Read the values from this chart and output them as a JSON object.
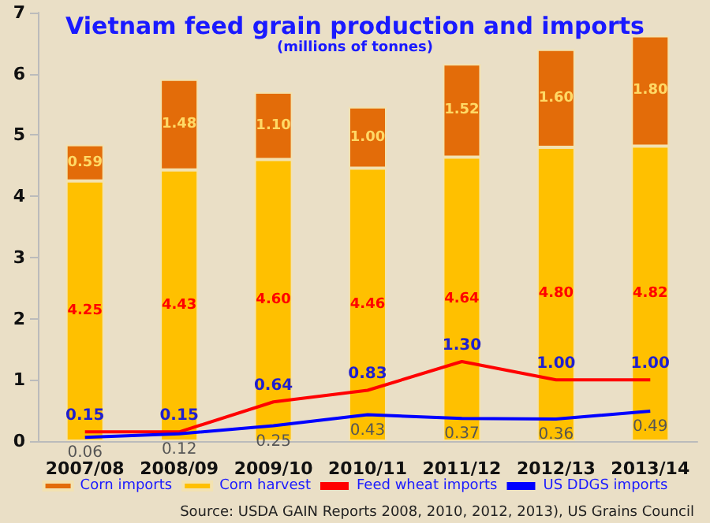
{
  "chart_data": {
    "type": "bar",
    "title": "Vietnam feed grain production and imports",
    "subtitle": "(millions of tonnes)",
    "categories": [
      "2007/08",
      "2008/09",
      "2009/10",
      "2010/11",
      "2011/12",
      "2012/13",
      "2013/14"
    ],
    "stacked": true,
    "series": [
      {
        "name": "Corn harvest",
        "color": "#ffc000",
        "values": [
          4.25,
          4.43,
          4.6,
          4.46,
          4.64,
          4.8,
          4.82
        ],
        "value_labels": [
          "4.25",
          "4.43",
          "4.60",
          "4.46",
          "4.64",
          "4.80",
          "4.82"
        ]
      },
      {
        "name": "Corn imports",
        "color": "#e36c09",
        "values": [
          0.59,
          1.48,
          1.1,
          1.0,
          1.52,
          1.6,
          1.8
        ],
        "value_labels": [
          "0.59",
          "1.48",
          "1.10",
          "1.00",
          "1.52",
          "1.60",
          "1.80"
        ]
      },
      {
        "name": "Feed wheat imports",
        "type": "line",
        "color": "#ff0000",
        "values": [
          0.15,
          0.15,
          0.64,
          0.83,
          1.3,
          1.0,
          1.0
        ],
        "value_labels": [
          "0.15",
          "0.15",
          "0.64",
          "0.83",
          "1.30",
          "1.00",
          "1.00"
        ]
      },
      {
        "name": "US DDGS imports",
        "type": "line",
        "color": "#0000ff",
        "values": [
          0.06,
          0.12,
          0.25,
          0.43,
          0.37,
          0.36,
          0.49
        ],
        "value_labels": [
          "0.06",
          "0.12",
          "0.25",
          "0.43",
          "0.37",
          "0.36",
          "0.49"
        ]
      }
    ],
    "ylim": [
      0,
      7
    ],
    "yticks": [
      0,
      1,
      2,
      3,
      4,
      5,
      6,
      7
    ],
    "grid": false,
    "legend": "bottom",
    "marker": "none",
    "annotations": [
      "Source: USDA GAIN Reports 2008, 2010, 2012, 2013), US Grains Council"
    ]
  }
}
